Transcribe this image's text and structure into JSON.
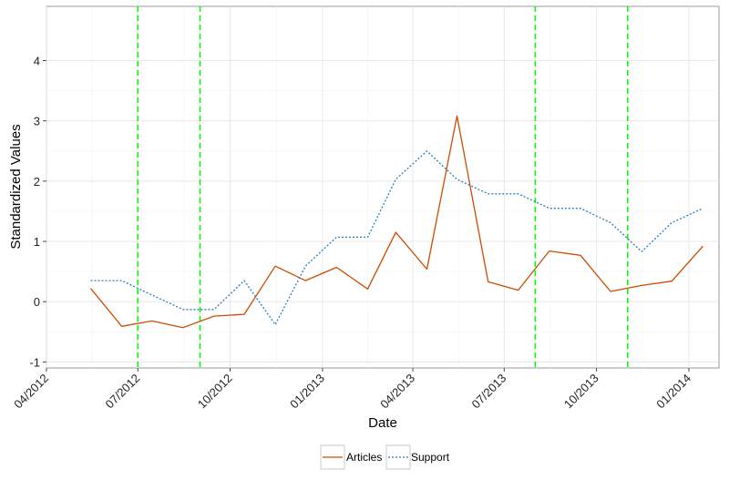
{
  "chart_data": {
    "type": "line",
    "xlabel": "Date",
    "ylabel": "Standardized Values",
    "title": "",
    "x": [
      "2012-05-15",
      "2012-06-15",
      "2012-07-15",
      "2012-08-15",
      "2012-09-15",
      "2012-10-15",
      "2012-11-15",
      "2012-12-15",
      "2013-01-15",
      "2013-02-15",
      "2013-03-15",
      "2013-04-15",
      "2013-05-15",
      "2013-06-15",
      "2013-07-15",
      "2013-08-15",
      "2013-09-15",
      "2013-10-15",
      "2013-11-15",
      "2013-12-15",
      "2014-01-15"
    ],
    "series": [
      {
        "name": "Articles",
        "style": "solid",
        "color": "#cc4c02",
        "values": [
          0.22,
          -0.41,
          -0.32,
          -0.43,
          -0.24,
          -0.21,
          0.59,
          0.35,
          0.57,
          0.21,
          1.15,
          0.54,
          3.08,
          0.33,
          0.19,
          0.84,
          0.77,
          0.17,
          0.27,
          0.34,
          0.92
        ]
      },
      {
        "name": "Support",
        "style": "dotted",
        "color": "#2c7fb8",
        "values": [
          0.35,
          0.35,
          0.11,
          -0.13,
          -0.13,
          0.35,
          -0.38,
          0.59,
          1.07,
          1.07,
          2.03,
          2.5,
          2.03,
          1.79,
          1.79,
          1.55,
          1.55,
          1.31,
          0.83,
          1.31,
          1.55
        ]
      }
    ],
    "xlim": [
      "2012-04-01",
      "2014-01-31"
    ],
    "ylim": [
      -1.1,
      4.9
    ],
    "yticks": [
      -1,
      0,
      1,
      2,
      3,
      4
    ],
    "ytick_labels": [
      "-1",
      "0",
      "1",
      "2",
      "3",
      "4"
    ],
    "xticks": [
      "2012-04-01",
      "2012-07-01",
      "2012-10-01",
      "2013-01-01",
      "2013-04-01",
      "2013-07-01",
      "2013-10-01",
      "2014-01-01"
    ],
    "xtick_labels": [
      "04/2012",
      "07/2012",
      "10/2012",
      "01/2013",
      "04/2013",
      "07/2013",
      "10/2013",
      "01/2014"
    ],
    "vlines": [
      "2012-07-01",
      "2012-09-01",
      "2013-08-01",
      "2013-11-01"
    ],
    "vline_color": "#00ff00",
    "grid": true,
    "legend_position": "bottom"
  }
}
